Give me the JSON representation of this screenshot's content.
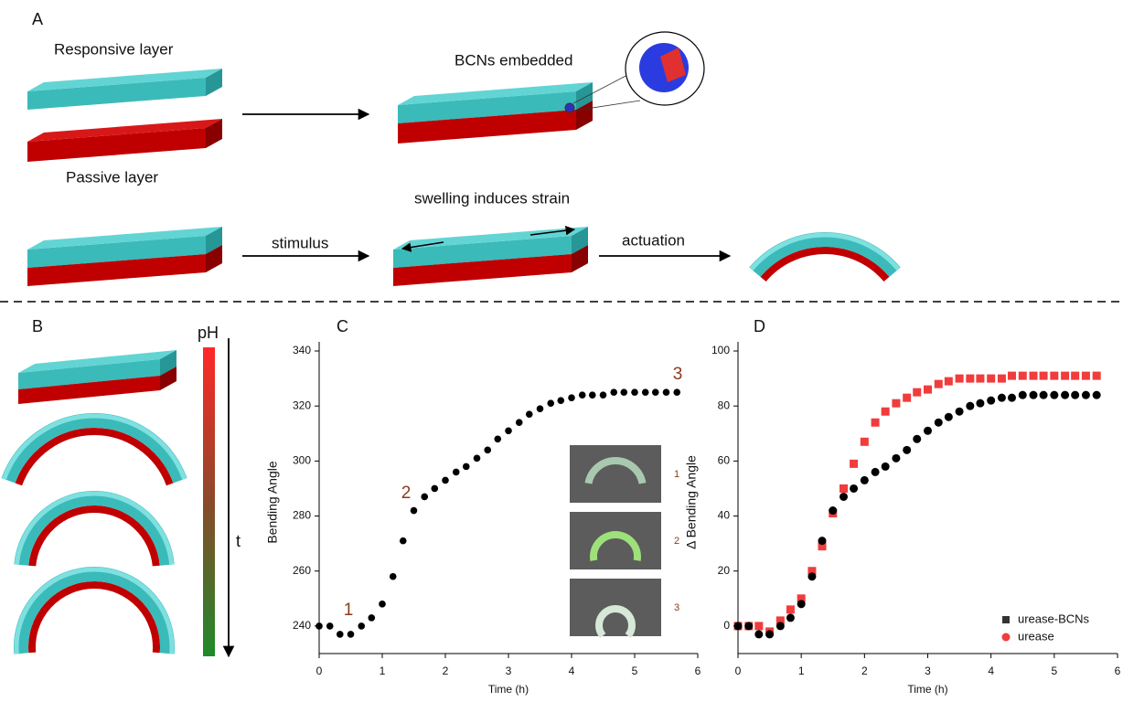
{
  "figure": {
    "panel_labels": [
      "A",
      "B",
      "C",
      "D"
    ],
    "a": {
      "responsive": "Responsive layer",
      "passive": "Passive layer",
      "embedded": "BCNs embedded",
      "swelling": "swelling induces strain",
      "stimulus": "stimulus",
      "actuation": "actuation"
    },
    "b": {
      "ph": "pH",
      "t": "t"
    }
  },
  "chart_data": [
    {
      "type": "scatter",
      "xlabel": "Time (h)",
      "ylabel": "Bending Angle",
      "x": [
        0,
        0.17,
        0.33,
        0.5,
        0.67,
        0.83,
        1,
        1.17,
        1.33,
        1.5,
        1.67,
        1.83,
        2,
        2.17,
        2.33,
        2.5,
        2.67,
        2.83,
        3,
        3.17,
        3.33,
        3.5,
        3.67,
        3.83,
        4,
        4.17,
        4.33,
        4.5,
        4.67,
        4.83,
        5,
        5.17,
        5.33,
        5.5,
        5.67
      ],
      "series": [
        {
          "color": "#000000",
          "marker": "circle",
          "values": [
            240,
            240,
            237,
            237,
            240,
            243,
            248,
            258,
            271,
            282,
            287,
            290,
            293,
            296,
            298,
            301,
            304,
            308,
            311,
            314,
            317,
            319,
            321,
            322,
            323,
            324,
            324,
            324,
            325,
            325,
            325,
            325,
            325,
            325,
            325
          ]
        }
      ],
      "xlim": [
        0,
        6
      ],
      "ylim": [
        230,
        340
      ],
      "xticks": [
        0,
        1,
        2,
        3,
        4,
        5,
        6
      ],
      "yticks": [
        240,
        260,
        280,
        300,
        320,
        340
      ],
      "annotations": [
        "1",
        "2",
        "3"
      ],
      "inset_labels": [
        "1",
        "2",
        "3"
      ]
    },
    {
      "type": "scatter",
      "xlabel": "Time (h)",
      "ylabel": "Δ Bending Angle",
      "x": [
        0,
        0.17,
        0.33,
        0.5,
        0.67,
        0.83,
        1,
        1.17,
        1.33,
        1.5,
        1.67,
        1.83,
        2,
        2.17,
        2.33,
        2.5,
        2.67,
        2.83,
        3,
        3.17,
        3.33,
        3.5,
        3.67,
        3.83,
        4,
        4.17,
        4.33,
        4.5,
        4.67,
        4.83,
        5,
        5.17,
        5.33,
        5.5,
        5.67
      ],
      "series": [
        {
          "name": "urease-BCNs",
          "color": "#000000",
          "marker": "circle",
          "values": [
            0,
            0,
            -3,
            -3,
            0,
            3,
            8,
            18,
            31,
            42,
            47,
            50,
            53,
            56,
            58,
            61,
            64,
            68,
            71,
            74,
            76,
            78,
            80,
            81,
            82,
            83,
            83,
            84,
            84,
            84,
            84,
            84,
            84,
            84,
            84
          ]
        },
        {
          "name": "urease",
          "color": "#f03c3c",
          "marker": "square",
          "values": [
            0,
            0,
            0,
            -2,
            2,
            6,
            10,
            20,
            29,
            41,
            50,
            59,
            67,
            74,
            78,
            81,
            83,
            85,
            86,
            88,
            89,
            90,
            90,
            90,
            90,
            90,
            91,
            91,
            91,
            91,
            91,
            91,
            91,
            91,
            91
          ]
        }
      ],
      "xlim": [
        0,
        6
      ],
      "ylim": [
        -10,
        100
      ],
      "xticks": [
        0,
        1,
        2,
        3,
        4,
        5,
        6
      ],
      "yticks": [
        0,
        20,
        40,
        60,
        80,
        100
      ],
      "legend": "lower right"
    }
  ]
}
